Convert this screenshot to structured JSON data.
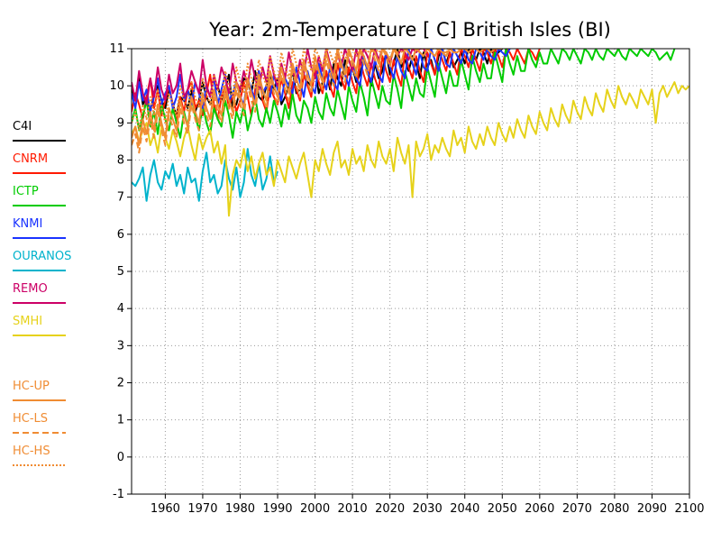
{
  "chart_data": {
    "type": "line",
    "title": "Year: 2m-Temperature [   C] British Isles (BI)",
    "xlabel": "",
    "ylabel": "",
    "xlim": [
      1951,
      2100
    ],
    "ylim": [
      -1,
      11
    ],
    "xticks": [
      1960,
      1970,
      1980,
      1990,
      2000,
      2010,
      2020,
      2030,
      2040,
      2050,
      2060,
      2070,
      2080,
      2090,
      2100
    ],
    "yticks": [
      -1,
      0,
      1,
      2,
      3,
      4,
      5,
      6,
      7,
      8,
      9,
      10,
      11
    ],
    "grid": true,
    "legend_position": "left",
    "series": [
      {
        "name": "C4I",
        "color": "#000000",
        "dash": "solid",
        "start": 1951,
        "values": [
          9.9,
          9.6,
          10.2,
          9.5,
          9.7,
          9.3,
          9.8,
          10.0,
          9.6,
          9.4,
          9.9,
          9.5,
          9.2,
          9.7,
          9.6,
          9.4,
          9.9,
          9.3,
          9.6,
          10.1,
          9.7,
          9.5,
          9.8,
          10.0,
          9.6,
          9.9,
          10.3,
          9.4,
          9.5,
          9.9,
          10.2,
          10.1,
          9.8,
          10.4,
          9.7,
          9.6,
          10.0,
          10.3,
          9.9,
          10.2,
          9.5,
          9.7,
          10.0,
          10.4,
          9.8,
          9.9,
          10.3,
          10.1,
          10.0,
          10.5,
          9.8,
          10.1,
          10.4,
          9.9,
          10.6,
          10.2,
          10.0,
          10.7,
          10.3,
          10.5,
          10.1,
          10.3,
          10.8,
          10.4,
          10.0,
          10.6,
          10.2,
          10.4,
          10.9,
          10.3,
          10.6,
          11.0,
          10.5,
          10.7,
          10.4,
          10.8,
          10.6,
          10.2,
          10.9,
          10.5,
          10.7,
          10.3,
          10.8,
          11.0,
          10.6,
          10.9,
          10.5,
          10.7,
          10.9,
          10.6,
          11.0,
          10.8,
          10.7,
          11.0,
          10.9,
          10.6,
          11.0,
          10.8,
          10.9,
          11.0
        ]
      },
      {
        "name": "CNRM",
        "color": "#ff1a00",
        "dash": "solid",
        "start": 1951,
        "values": [
          9.3,
          9.8,
          9.5,
          9.1,
          9.7,
          10.2,
          9.4,
          9.9,
          9.2,
          9.6,
          10.0,
          9.5,
          9.0,
          9.7,
          9.3,
          9.9,
          10.1,
          9.4,
          9.6,
          9.2,
          9.8,
          10.3,
          9.5,
          9.1,
          9.7,
          10.0,
          9.4,
          9.8,
          9.3,
          9.6,
          10.1,
          9.7,
          9.2,
          9.9,
          10.4,
          9.6,
          9.3,
          10.0,
          9.7,
          9.5,
          10.2,
          9.8,
          9.4,
          10.1,
          9.9,
          9.6,
          10.3,
          10.0,
          9.7,
          10.5,
          10.1,
          9.8,
          10.4,
          10.0,
          9.7,
          10.6,
          10.2,
          9.9,
          10.5,
          10.1,
          9.8,
          10.7,
          10.3,
          10.0,
          10.6,
          10.2,
          9.9,
          10.8,
          10.4,
          10.1,
          10.7,
          10.3,
          10.0,
          10.9,
          10.5,
          10.2,
          10.8,
          10.4,
          10.1,
          10.9,
          10.6,
          10.3,
          11.0,
          10.7,
          10.4,
          10.9,
          10.6,
          10.3,
          11.0,
          10.8,
          10.5,
          11.0,
          10.7,
          10.4,
          11.0,
          10.9,
          10.6,
          11.0,
          10.8,
          10.5,
          11.0,
          10.9,
          10.7,
          11.0,
          10.8,
          10.6,
          11.0,
          10.9,
          10.7,
          11.0
        ]
      },
      {
        "name": "ICTP",
        "color": "#00cc00",
        "dash": "solid",
        "start": 1951,
        "values": [
          9.0,
          9.4,
          8.8,
          9.2,
          9.6,
          8.9,
          9.3,
          8.7,
          9.5,
          9.1,
          8.8,
          9.4,
          9.0,
          8.6,
          9.3,
          8.9,
          9.7,
          9.2,
          8.8,
          9.5,
          9.0,
          8.7,
          9.4,
          9.1,
          8.9,
          9.6,
          9.2,
          8.6,
          9.3,
          9.0,
          9.5,
          8.8,
          9.2,
          9.7,
          9.1,
          8.9,
          9.4,
          9.0,
          9.6,
          9.3,
          8.9,
          9.5,
          9.1,
          9.8,
          9.2,
          9.0,
          9.6,
          9.4,
          9.0,
          9.7,
          9.3,
          9.1,
          9.8,
          9.4,
          9.2,
          9.9,
          9.5,
          9.1,
          10.0,
          9.6,
          9.3,
          10.1,
          9.7,
          9.2,
          10.2,
          9.8,
          9.4,
          10.0,
          9.6,
          9.5,
          10.3,
          9.9,
          9.4,
          10.4,
          10.0,
          9.6,
          10.2,
          9.8,
          9.7,
          10.5,
          10.1,
          9.7,
          10.6,
          10.2,
          9.8,
          10.4,
          10.0,
          10.0,
          10.7,
          10.3,
          9.9,
          10.8,
          10.4,
          10.1,
          10.6,
          10.2,
          10.2,
          10.9,
          10.5,
          10.1,
          11.0,
          10.6,
          10.3,
          10.8,
          10.4,
          10.4,
          11.0,
          10.7,
          10.5,
          10.9,
          10.6,
          10.6,
          11.0,
          10.8,
          10.6,
          11.0,
          10.9,
          10.7,
          11.0,
          10.8,
          10.6,
          11.0,
          10.9,
          10.7,
          11.0,
          10.8,
          10.7,
          11.0,
          10.9,
          10.8,
          11.0,
          10.8,
          10.7,
          11.0,
          10.9,
          10.8,
          11.0,
          10.9,
          10.8,
          11.0,
          10.9,
          10.7,
          10.8,
          10.9,
          10.7,
          11.0
        ]
      },
      {
        "name": "KNMI",
        "color": "#1a33ff",
        "dash": "solid",
        "start": 1951,
        "values": [
          9.8,
          9.4,
          10.1,
          9.6,
          9.9,
          9.3,
          9.7,
          10.2,
          9.5,
          9.8,
          10.0,
          9.4,
          9.7,
          10.3,
          9.6,
          9.9,
          9.5,
          10.1,
          9.8,
          9.4,
          10.0,
          9.7,
          10.2,
          9.5,
          9.9,
          10.3,
          9.6,
          9.8,
          10.1,
          9.7,
          9.5,
          10.2,
          9.9,
          9.6,
          10.4,
          9.8,
          10.0,
          9.7,
          10.3,
          9.9,
          9.6,
          10.2,
          10.0,
          9.8,
          10.5,
          10.1,
          9.7,
          10.4,
          10.0,
          9.8,
          10.6,
          10.2,
          9.9,
          10.5,
          10.1,
          9.9,
          10.7,
          10.3,
          10.0,
          10.6,
          10.2,
          10.0,
          10.8,
          10.4,
          10.1,
          10.7,
          10.3,
          10.1,
          10.9,
          10.5,
          10.2,
          10.8,
          10.4,
          10.2,
          11.0,
          10.6,
          10.3,
          10.9,
          10.5,
          10.4,
          11.0,
          10.7,
          10.4,
          11.0,
          10.6,
          10.5,
          11.0,
          10.8,
          10.6,
          11.0,
          10.7,
          10.6,
          11.0,
          10.9,
          10.7,
          11.0,
          10.8,
          10.7,
          11.0,
          10.9,
          10.8,
          11.0
        ]
      },
      {
        "name": "OURANOS",
        "color": "#00b3cc",
        "dash": "solid",
        "start": 1951,
        "values": [
          7.4,
          7.3,
          7.5,
          7.8,
          6.9,
          7.6,
          8.0,
          7.4,
          7.2,
          7.7,
          7.5,
          7.9,
          7.3,
          7.6,
          7.1,
          7.8,
          7.4,
          7.5,
          6.9,
          7.7,
          8.2,
          7.4,
          7.6,
          7.1,
          7.3,
          8.0,
          7.5,
          7.2,
          7.8,
          7.0,
          7.4,
          8.3,
          7.6,
          7.3,
          7.9,
          7.2,
          7.5,
          8.1,
          7.4,
          7.7
        ]
      },
      {
        "name": "REMO",
        "color": "#cc0066",
        "dash": "solid",
        "start": 1951,
        "values": [
          10.1,
          9.6,
          10.4,
          9.8,
          9.5,
          10.2,
          9.7,
          10.5,
          9.9,
          9.6,
          10.3,
          9.8,
          10.0,
          10.6,
          9.7,
          9.9,
          10.4,
          10.1,
          9.8,
          10.7,
          10.0,
          9.7,
          10.3,
          9.9,
          10.5,
          10.2,
          9.8,
          10.6,
          10.1,
          9.9,
          10.4,
          10.0,
          10.7,
          10.2,
          9.9,
          10.5,
          10.1,
          10.8,
          10.3,
          10.0,
          10.6,
          10.2,
          10.9,
          10.4,
          10.1,
          10.7,
          10.3,
          11.0,
          10.5,
          10.2,
          10.8,
          10.4,
          11.0,
          10.6,
          10.3,
          10.9,
          10.5,
          11.0,
          10.7,
          10.4,
          11.0,
          10.6,
          11.0,
          10.8,
          10.5,
          11.0,
          10.7,
          11.0,
          10.9,
          10.6,
          11.0,
          10.8,
          11.0,
          10.9,
          10.7,
          11.0,
          10.9,
          11.0,
          11.0,
          10.8
        ]
      },
      {
        "name": "SMHI",
        "color": "#e6d21a",
        "dash": "solid",
        "start": 1951,
        "values": [
          8.7,
          8.9,
          8.5,
          8.8,
          9.0,
          8.4,
          8.7,
          8.2,
          8.9,
          8.6,
          8.3,
          8.8,
          8.5,
          8.1,
          8.6,
          8.9,
          8.4,
          8.0,
          8.7,
          8.3,
          8.6,
          8.8,
          8.2,
          8.5,
          7.9,
          8.4,
          6.5,
          7.6,
          8.0,
          7.8,
          8.3,
          7.7,
          8.1,
          7.5,
          7.9,
          8.2,
          7.6,
          7.8,
          7.3,
          8.0,
          7.7,
          7.4,
          8.1,
          7.8,
          7.5,
          7.9,
          8.2,
          7.6,
          7.0,
          8.0,
          7.7,
          8.3,
          7.9,
          7.6,
          8.2,
          8.5,
          7.8,
          8.0,
          7.6,
          8.3,
          7.9,
          8.1,
          7.7,
          8.4,
          8.0,
          7.8,
          8.5,
          8.1,
          7.9,
          8.3,
          7.7,
          8.6,
          8.2,
          7.9,
          8.4,
          7.0,
          8.5,
          8.1,
          8.3,
          8.7,
          8.0,
          8.4,
          8.2,
          8.6,
          8.3,
          8.1,
          8.8,
          8.4,
          8.6,
          8.2,
          8.9,
          8.5,
          8.3,
          8.7,
          8.4,
          8.9,
          8.6,
          8.4,
          9.0,
          8.7,
          8.5,
          8.9,
          8.6,
          9.1,
          8.8,
          8.6,
          9.2,
          8.9,
          8.7,
          9.3,
          9.0,
          8.8,
          9.4,
          9.1,
          8.9,
          9.5,
          9.2,
          9.0,
          9.6,
          9.3,
          9.1,
          9.7,
          9.4,
          9.2,
          9.8,
          9.5,
          9.3,
          9.9,
          9.6,
          9.4,
          10.0,
          9.7,
          9.5,
          9.8,
          9.6,
          9.4,
          9.9,
          9.7,
          9.5,
          9.9,
          9.0,
          9.8,
          10.0,
          9.7,
          9.9,
          10.1,
          9.8,
          10.0,
          9.9,
          10.0
        ]
      },
      {
        "name": "HC-UP",
        "color": "#f08c33",
        "dash": "solid",
        "start": 1951,
        "values": [
          8.6,
          8.9,
          8.4,
          9.1,
          8.7,
          9.3,
          8.8,
          9.5,
          9.0,
          8.6,
          9.4,
          9.1,
          8.8,
          9.6,
          9.2,
          8.9,
          9.7,
          9.3,
          9.0,
          9.8,
          9.4,
          9.1,
          9.9,
          9.5,
          9.2,
          10.0,
          9.6,
          9.3,
          10.1,
          9.7,
          9.4,
          10.2,
          9.8,
          9.5,
          10.3,
          9.9,
          9.6,
          10.4,
          10.0,
          9.7,
          10.5,
          10.1,
          9.8,
          10.6,
          10.2,
          9.9,
          10.7,
          10.3,
          10.0,
          10.8,
          10.4,
          10.1,
          10.9,
          10.5,
          10.2,
          11.0,
          10.6,
          10.3,
          11.0,
          10.7,
          10.4,
          11.0,
          10.8,
          10.5,
          11.0,
          10.9,
          10.6,
          11.0,
          10.9,
          10.7,
          11.0,
          10.8,
          10.6,
          11.0,
          10.9,
          10.7,
          11.0,
          10.9,
          10.8,
          11.0,
          10.9,
          10.8,
          11.0,
          10.9,
          10.8,
          11.0,
          10.9,
          10.9,
          11.0,
          11.0,
          10.9,
          11.0,
          11.0,
          10.9,
          11.0,
          11.0,
          10.9,
          11.0,
          11.0,
          11.0
        ]
      },
      {
        "name": "HC-LS",
        "color": "#f08c33",
        "dash": "dashed",
        "start": 1951,
        "values": [
          8.4,
          8.7,
          8.2,
          8.9,
          8.5,
          9.1,
          8.6,
          9.3,
          8.8,
          8.4,
          9.2,
          8.9,
          8.6,
          9.4,
          9.0,
          8.7,
          9.5,
          9.1,
          8.8,
          9.6,
          9.2,
          8.9,
          9.7,
          9.3,
          9.0,
          9.8,
          9.4,
          9.1,
          9.9,
          9.5,
          9.2,
          10.0,
          9.6,
          9.3,
          10.1,
          9.7,
          9.4,
          10.2,
          9.8,
          9.5,
          10.3,
          9.9,
          9.6,
          10.4,
          10.0,
          9.7,
          10.5,
          10.1,
          9.8,
          10.6,
          10.2,
          9.9,
          10.7,
          10.3,
          10.0,
          10.8,
          10.4,
          10.1,
          10.9,
          10.5,
          10.2,
          11.0,
          10.6,
          10.3,
          11.0,
          10.7,
          10.4,
          11.0,
          10.8,
          10.5,
          11.0,
          10.9,
          10.6,
          11.0,
          10.9,
          10.7,
          11.0,
          10.9,
          10.8,
          11.0,
          10.9,
          10.8,
          11.0,
          10.9,
          10.9,
          11.0,
          10.9,
          10.9,
          11.0,
          11.0,
          11.0
        ]
      },
      {
        "name": "HC-HS",
        "color": "#f08c33",
        "dash": "dotted",
        "start": 1951,
        "values": [
          9.0,
          9.3,
          8.8,
          9.5,
          9.1,
          9.7,
          9.2,
          9.9,
          9.4,
          9.0,
          9.8,
          9.5,
          9.2,
          10.0,
          9.6,
          9.3,
          10.1,
          9.7,
          9.4,
          10.2,
          9.8,
          9.5,
          10.3,
          9.9,
          9.6,
          10.4,
          10.0,
          9.7,
          10.5,
          10.1,
          9.8,
          10.6,
          10.2,
          9.9,
          10.7,
          10.3,
          10.0,
          10.8,
          10.4,
          10.1,
          10.9,
          10.5,
          10.2,
          11.0,
          10.6,
          10.3,
          11.0,
          10.7,
          10.4,
          11.0,
          10.8,
          10.5,
          11.0,
          10.9,
          10.6,
          11.0,
          10.9,
          10.7,
          11.0,
          11.0,
          10.8,
          11.0,
          11.0,
          10.9,
          11.0,
          11.0,
          10.9,
          11.0,
          11.0,
          11.0,
          11.0,
          11.0,
          10.9,
          11.0,
          11.0,
          11.0,
          11.0,
          11.0,
          11.0,
          11.0,
          11.0,
          11.0,
          11.0,
          11.0,
          11.0,
          11.0,
          11.0,
          11.0,
          11.0,
          11.0,
          11.0
        ]
      }
    ]
  }
}
